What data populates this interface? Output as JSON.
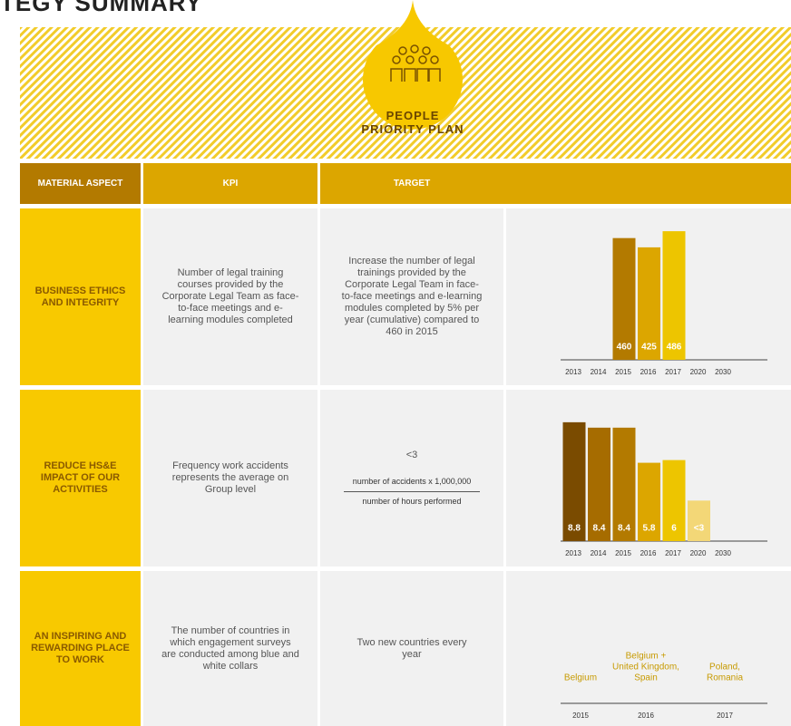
{
  "header": {
    "title": "TEGY SUMMARY",
    "banner": [
      "PEOPLE",
      "PRIORITY PLAN"
    ]
  },
  "table": {
    "columns": [
      "MATERIAL ASPECT",
      "KPI",
      "TARGET"
    ],
    "rows": [
      {
        "aspect": "BUSINESS ETHICS AND INTEGRITY",
        "kpi": "Number of legal training courses provided by the Corporate Legal Team as face-to-face meetings and e-learning modules completed",
        "target": "Increase the number of legal trainings provided by the Corporate Legal Team in face-to-face meetings and e-learning modules completed by 5% per year (cumulative) compared to 460 in 2015"
      },
      {
        "aspect": "REDUCE HS&E IMPACT OF OUR ACTIVITIES",
        "kpi": "Frequency work accidents represents the average on Group level",
        "target": "<3",
        "numerator": "number of accidents x 1,000,000",
        "denominator": "number of hours performed"
      },
      {
        "aspect": "AN INSPIRING AND REWARDING PLACE TO WORK",
        "kpi": "The number of countries in which engagement surveys are conducted among blue and white collars",
        "target": "Two new countries every year"
      }
    ]
  },
  "chart_data": [
    {
      "type": "bar",
      "categories": [
        "2013",
        "2014",
        "2015",
        "2016",
        "2017",
        "2020",
        "2030"
      ],
      "values": [
        null,
        null,
        460,
        425,
        486,
        null,
        null
      ],
      "colors": [
        null,
        null,
        "#b37a00",
        "#dca600",
        "#edc500",
        null,
        null
      ],
      "ylim": [
        0,
        500
      ]
    },
    {
      "type": "bar",
      "categories": [
        "2013",
        "2014",
        "2015",
        "2016",
        "2017",
        "2020",
        "2030"
      ],
      "values": [
        8.8,
        8.4,
        8.4,
        5.8,
        6,
        3,
        null
      ],
      "value_labels": [
        "8.8",
        "8.4",
        "8.4",
        "5.8",
        "6",
        "<3",
        null
      ],
      "colors": [
        "#7a4b00",
        "#a66c00",
        "#b37a00",
        "#dca600",
        "#edc500",
        "#f3d777",
        null
      ],
      "ylim": [
        0,
        10
      ]
    }
  ],
  "timeline": {
    "years": [
      "2015",
      "2016",
      "2017"
    ],
    "labels": [
      [
        "Belgium"
      ],
      [
        "Belgium +",
        "United Kingdom,",
        "Spain"
      ],
      [
        "Poland,",
        "Romania"
      ]
    ]
  }
}
